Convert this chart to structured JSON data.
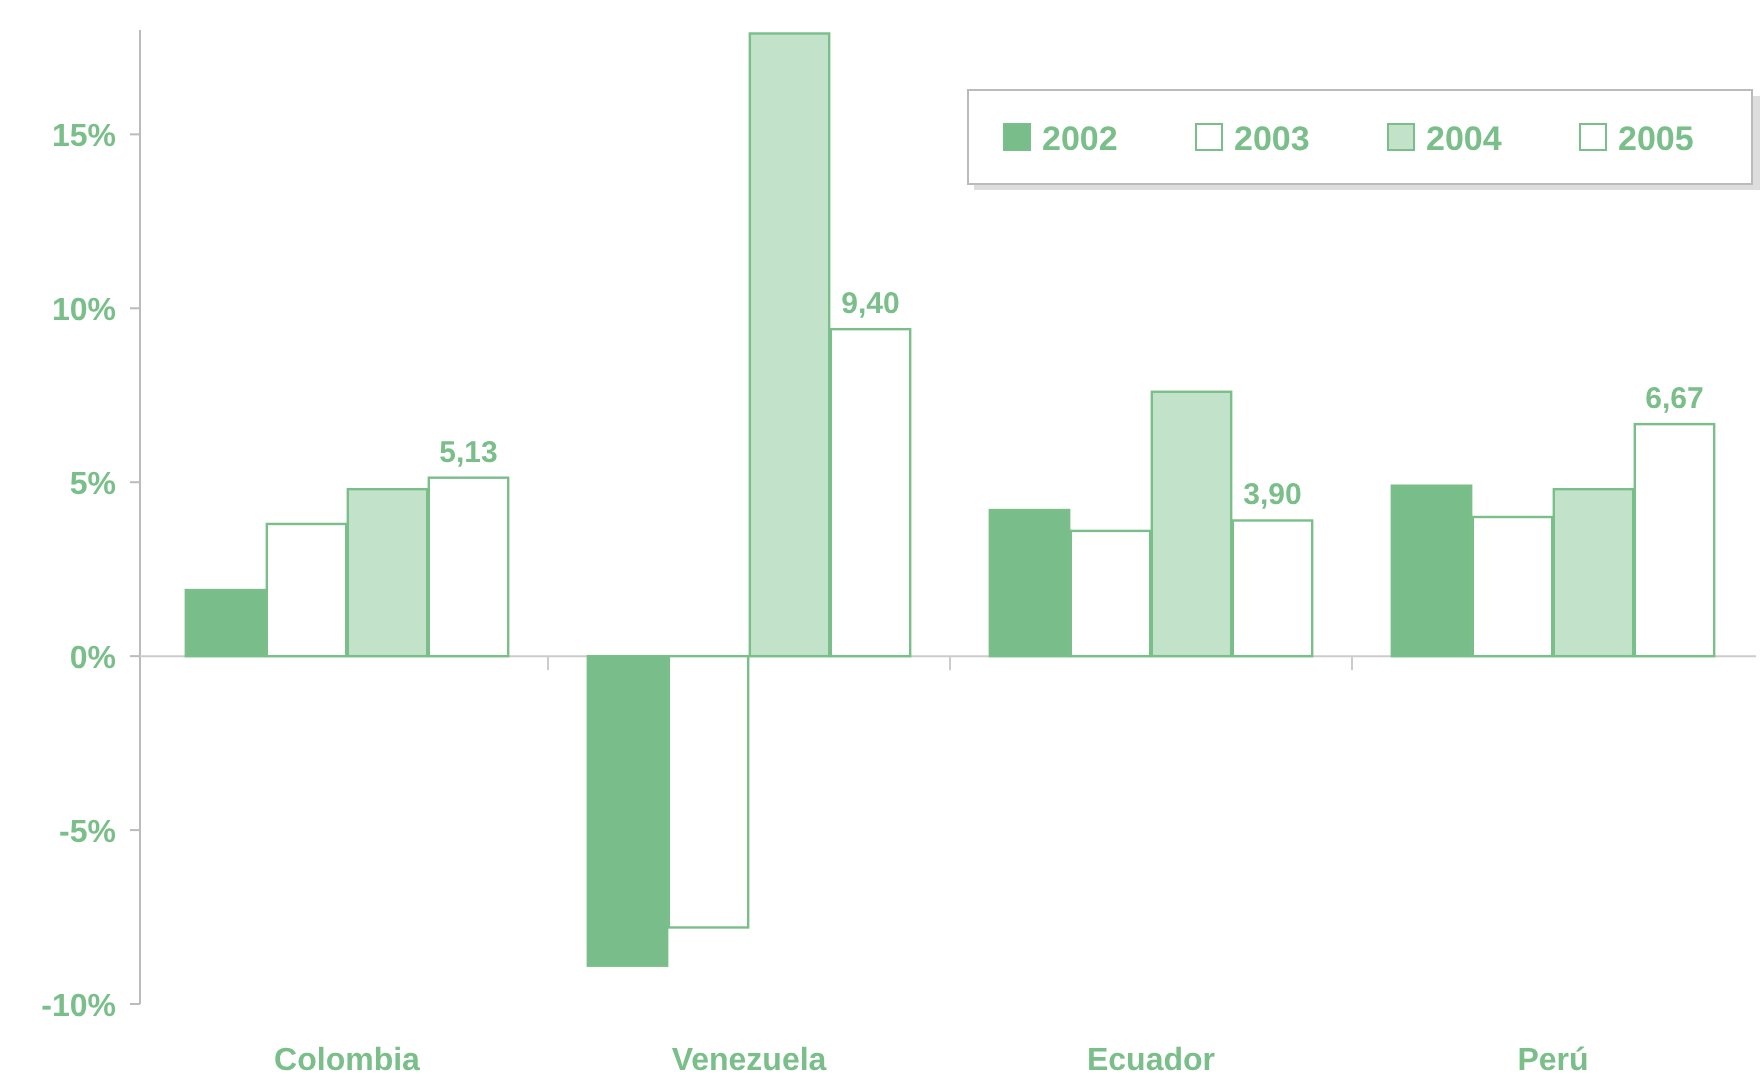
{
  "chart_data": {
    "type": "bar",
    "categories": [
      "Colombia",
      "Venezuela",
      "Ecuador",
      "Perú"
    ],
    "series": [
      {
        "name": "2002",
        "color": "#79bd8a",
        "values": [
          1.9,
          -8.9,
          4.2,
          4.9
        ]
      },
      {
        "name": "2003",
        "color": "#ffffff",
        "values": [
          3.8,
          -7.8,
          3.6,
          4.0
        ]
      },
      {
        "name": "2004",
        "color": "#c2e2c9",
        "values": [
          4.8,
          17.9,
          7.6,
          4.8
        ]
      },
      {
        "name": "2005",
        "color": "#ffffff",
        "values": [
          5.13,
          9.4,
          3.9,
          6.67
        ],
        "value_labels": [
          "5,13",
          "9,40",
          "3,90",
          "6,67"
        ]
      }
    ],
    "ylim": [
      -10,
      18
    ],
    "yticks": [
      {
        "value": -10,
        "label": "-10%"
      },
      {
        "value": -5,
        "label": "-5%"
      },
      {
        "value": 0,
        "label": "0%"
      },
      {
        "value": 5,
        "label": "5%"
      },
      {
        "value": 10,
        "label": "10%"
      },
      {
        "value": 15,
        "label": "15%"
      }
    ],
    "legend": "top right"
  }
}
